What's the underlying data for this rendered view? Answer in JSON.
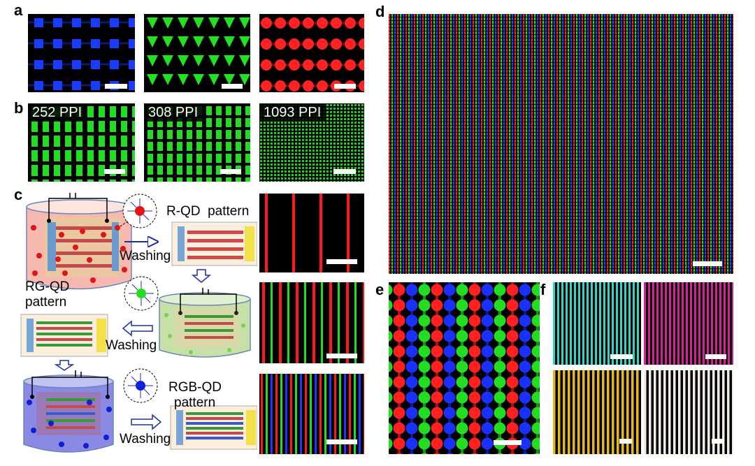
{
  "panel_labels": {
    "a": "a",
    "b": "b",
    "c": "c",
    "d": "d",
    "e": "e",
    "f": "f"
  },
  "ppi_labels": [
    "252 PPI",
    "308 PPI",
    "1093 PPI"
  ],
  "diagram": {
    "r_pattern": "R-QD  pattern",
    "rg_pattern_line1": "RG-QD",
    "rg_pattern_line2": "pattern",
    "rgb_pattern_line1": "RGB-QD",
    "rgb_pattern_line2": "pattern",
    "washing": "Washing"
  },
  "colors": {
    "red": "#ff1a1a",
    "green": "#22dd22",
    "blue": "#1a33ff",
    "cyan": "#2fd6c8",
    "magenta": "#d8209a",
    "yellow": "#e8b820",
    "white": "#f2ede4"
  }
}
